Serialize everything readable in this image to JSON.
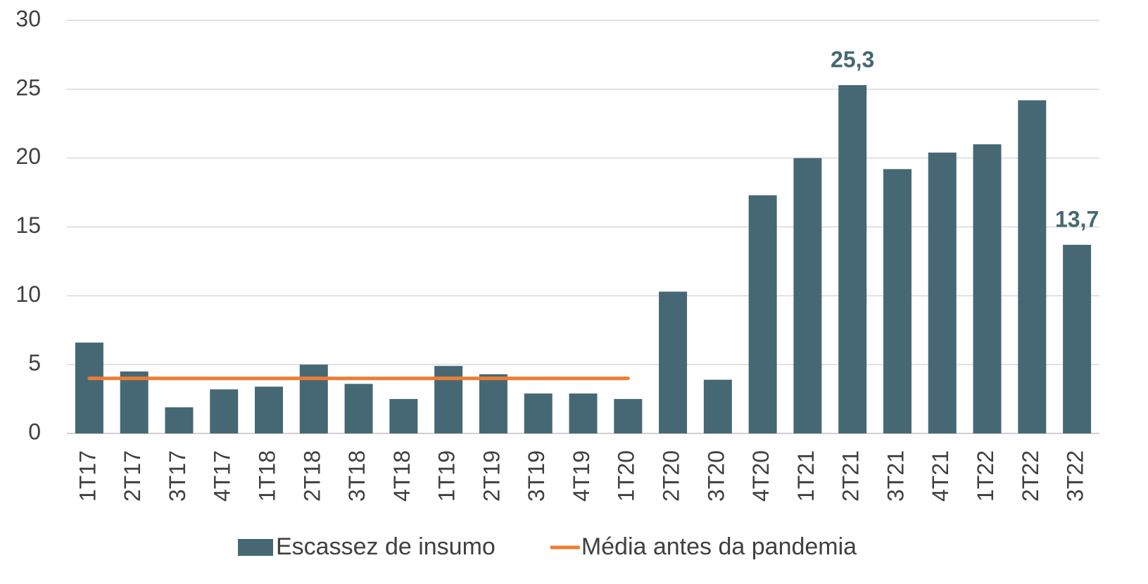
{
  "chart_data": {
    "type": "bar",
    "categories": [
      "1T17",
      "2T17",
      "3T17",
      "4T17",
      "1T18",
      "2T18",
      "3T18",
      "4T18",
      "1T19",
      "2T19",
      "3T19",
      "4T19",
      "1T20",
      "2T20",
      "3T20",
      "4T20",
      "1T21",
      "2T21",
      "3T21",
      "4T21",
      "1T22",
      "2T22",
      "3T22"
    ],
    "series": [
      {
        "name": "Escassez de insumo",
        "type": "bar",
        "color": "#466875",
        "values": [
          6.6,
          4.5,
          1.9,
          3.2,
          3.4,
          5.0,
          3.6,
          2.5,
          4.9,
          4.3,
          2.9,
          2.9,
          2.5,
          10.3,
          3.9,
          17.3,
          20.0,
          25.3,
          19.2,
          20.4,
          21.0,
          24.2,
          13.7
        ],
        "value_labels": [
          null,
          null,
          null,
          null,
          null,
          null,
          null,
          null,
          null,
          null,
          null,
          null,
          null,
          null,
          null,
          null,
          null,
          "25,3",
          null,
          null,
          null,
          null,
          "13,7"
        ]
      },
      {
        "name": "Média antes da pandemia",
        "type": "line",
        "color": "#ed7d31",
        "values": [
          4.0,
          4.0,
          4.0,
          4.0,
          4.0,
          4.0,
          4.0,
          4.0,
          4.0,
          4.0,
          4.0,
          4.0,
          4.0,
          null,
          null,
          null,
          null,
          null,
          null,
          null,
          null,
          null,
          null
        ]
      }
    ],
    "ylim": [
      0,
      30
    ],
    "yticks": [
      0,
      5,
      10,
      15,
      20,
      25,
      30
    ],
    "grid": true,
    "legend": "bottom"
  }
}
